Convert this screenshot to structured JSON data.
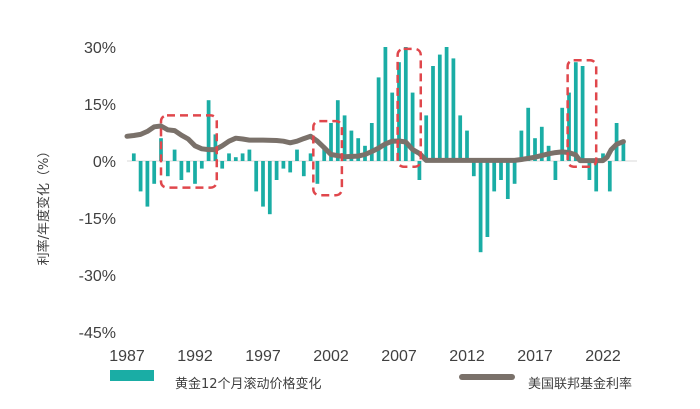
{
  "chart_data": {
    "type": "bar+line",
    "title": "",
    "ylabel": "利率/年度变化（%）",
    "xlabel": "",
    "ylim": [
      -45,
      30
    ],
    "xlim": [
      1987,
      2024.5
    ],
    "y_ticks": [
      30,
      15,
      0,
      -15,
      -30,
      -45
    ],
    "y_tick_labels": [
      "30%",
      "15%",
      "0%",
      "-15%",
      "-30%",
      "-45%"
    ],
    "x_ticks": [
      1987,
      1992,
      1997,
      2002,
      2007,
      2012,
      2017,
      2022
    ],
    "x_tick_labels": [
      "1987",
      "1992",
      "1997",
      "2002",
      "2007",
      "2012",
      "2017",
      "2022"
    ],
    "series": [
      {
        "name": "黄金12个月滚动价格变化",
        "type": "bar",
        "color": "#1aada5",
        "x": [
          1987.5,
          1988.0,
          1988.5,
          1989.0,
          1989.5,
          1990.0,
          1990.5,
          1991.0,
          1991.5,
          1992.0,
          1992.5,
          1993.0,
          1993.5,
          1994.0,
          1994.5,
          1995.0,
          1995.5,
          1996.0,
          1996.5,
          1997.0,
          1997.5,
          1998.0,
          1998.5,
          1999.0,
          1999.5,
          2000.0,
          2000.5,
          2001.0,
          2001.5,
          2002.0,
          2002.5,
          2003.0,
          2003.5,
          2004.0,
          2004.5,
          2005.0,
          2005.5,
          2006.0,
          2006.5,
          2007.0,
          2007.5,
          2008.0,
          2008.5,
          2009.0,
          2009.5,
          2010.0,
          2010.5,
          2011.0,
          2011.5,
          2012.0,
          2012.5,
          2013.0,
          2013.5,
          2014.0,
          2014.5,
          2015.0,
          2015.5,
          2016.0,
          2016.5,
          2017.0,
          2017.5,
          2018.0,
          2018.5,
          2019.0,
          2019.5,
          2020.0,
          2020.5,
          2021.0,
          2021.5,
          2022.0,
          2022.5,
          2023.0,
          2023.5
        ],
        "values": [
          2,
          -8,
          -12,
          -6,
          6,
          -4,
          3,
          -5,
          -3,
          -6,
          -2,
          16,
          7,
          -2,
          2,
          1,
          2,
          3,
          -8,
          -12,
          -14,
          -5,
          -2,
          -3,
          3,
          -4,
          2,
          -6,
          4,
          10,
          16,
          12,
          8,
          6,
          4,
          10,
          22,
          30,
          18,
          26,
          30,
          18,
          -5,
          12,
          25,
          28,
          30,
          27,
          12,
          8,
          -4,
          -24,
          -20,
          -8,
          -5,
          -10,
          -6,
          8,
          14,
          6,
          9,
          4,
          -5,
          14,
          18,
          26,
          25,
          -5,
          -8,
          2,
          -8,
          10,
          5
        ]
      },
      {
        "name": "美国联邦基金利率",
        "type": "line",
        "color": "#7a716a",
        "x": [
          1987.0,
          1987.5,
          1988.0,
          1988.5,
          1989.0,
          1989.5,
          1990.0,
          1990.5,
          1991.0,
          1991.5,
          1992.0,
          1992.5,
          1993.0,
          1993.5,
          1994.0,
          1994.5,
          1995.0,
          1995.5,
          1996.0,
          1997.0,
          1998.0,
          1998.5,
          1999.0,
          1999.5,
          2000.0,
          2000.5,
          2001.0,
          2001.5,
          2002.0,
          2003.0,
          2004.0,
          2004.5,
          2005.0,
          2005.5,
          2006.0,
          2006.5,
          2007.0,
          2007.5,
          2008.0,
          2008.5,
          2009.0,
          2015.5,
          2016.0,
          2017.0,
          2018.0,
          2018.5,
          2019.0,
          2019.5,
          2020.0,
          2020.3,
          2021.0,
          2022.0,
          2022.3,
          2022.6,
          2023.0,
          2023.5
        ],
        "values": [
          6.5,
          6.7,
          7.0,
          7.8,
          9.0,
          9.2,
          8.2,
          8.0,
          6.8,
          5.8,
          4.0,
          3.2,
          3.0,
          3.0,
          4.0,
          5.2,
          6.0,
          5.8,
          5.5,
          5.5,
          5.4,
          5.2,
          4.8,
          5.2,
          5.9,
          6.5,
          5.2,
          3.5,
          1.7,
          1.1,
          1.3,
          1.7,
          2.5,
          3.4,
          4.5,
          5.2,
          5.25,
          5.0,
          3.0,
          2.0,
          0.15,
          0.15,
          0.4,
          1.0,
          1.9,
          2.2,
          2.4,
          2.2,
          1.6,
          0.1,
          0.1,
          0.1,
          1.0,
          3.0,
          4.4,
          5.1
        ]
      }
    ],
    "annotations": [
      {
        "type": "dashed-box",
        "x": [
          1989.5,
          1993.6
        ],
        "y": [
          -7,
          12
        ],
        "color": "#e0474c"
      },
      {
        "type": "dashed-box",
        "x": [
          2000.7,
          2002.8
        ],
        "y": [
          -9,
          10.5
        ],
        "color": "#e0474c"
      },
      {
        "type": "dashed-box",
        "x": [
          2006.9,
          2008.6
        ],
        "y": [
          -1.5,
          29.5
        ],
        "color": "#e0474c"
      },
      {
        "type": "dashed-box",
        "x": [
          2019.4,
          2021.5
        ],
        "y": [
          -1.5,
          26.5
        ],
        "color": "#e0474c"
      }
    ],
    "legend": {
      "placement": "bottom",
      "items": [
        "黄金12个月滚动价格变化",
        "美国联邦基金利率"
      ]
    }
  }
}
